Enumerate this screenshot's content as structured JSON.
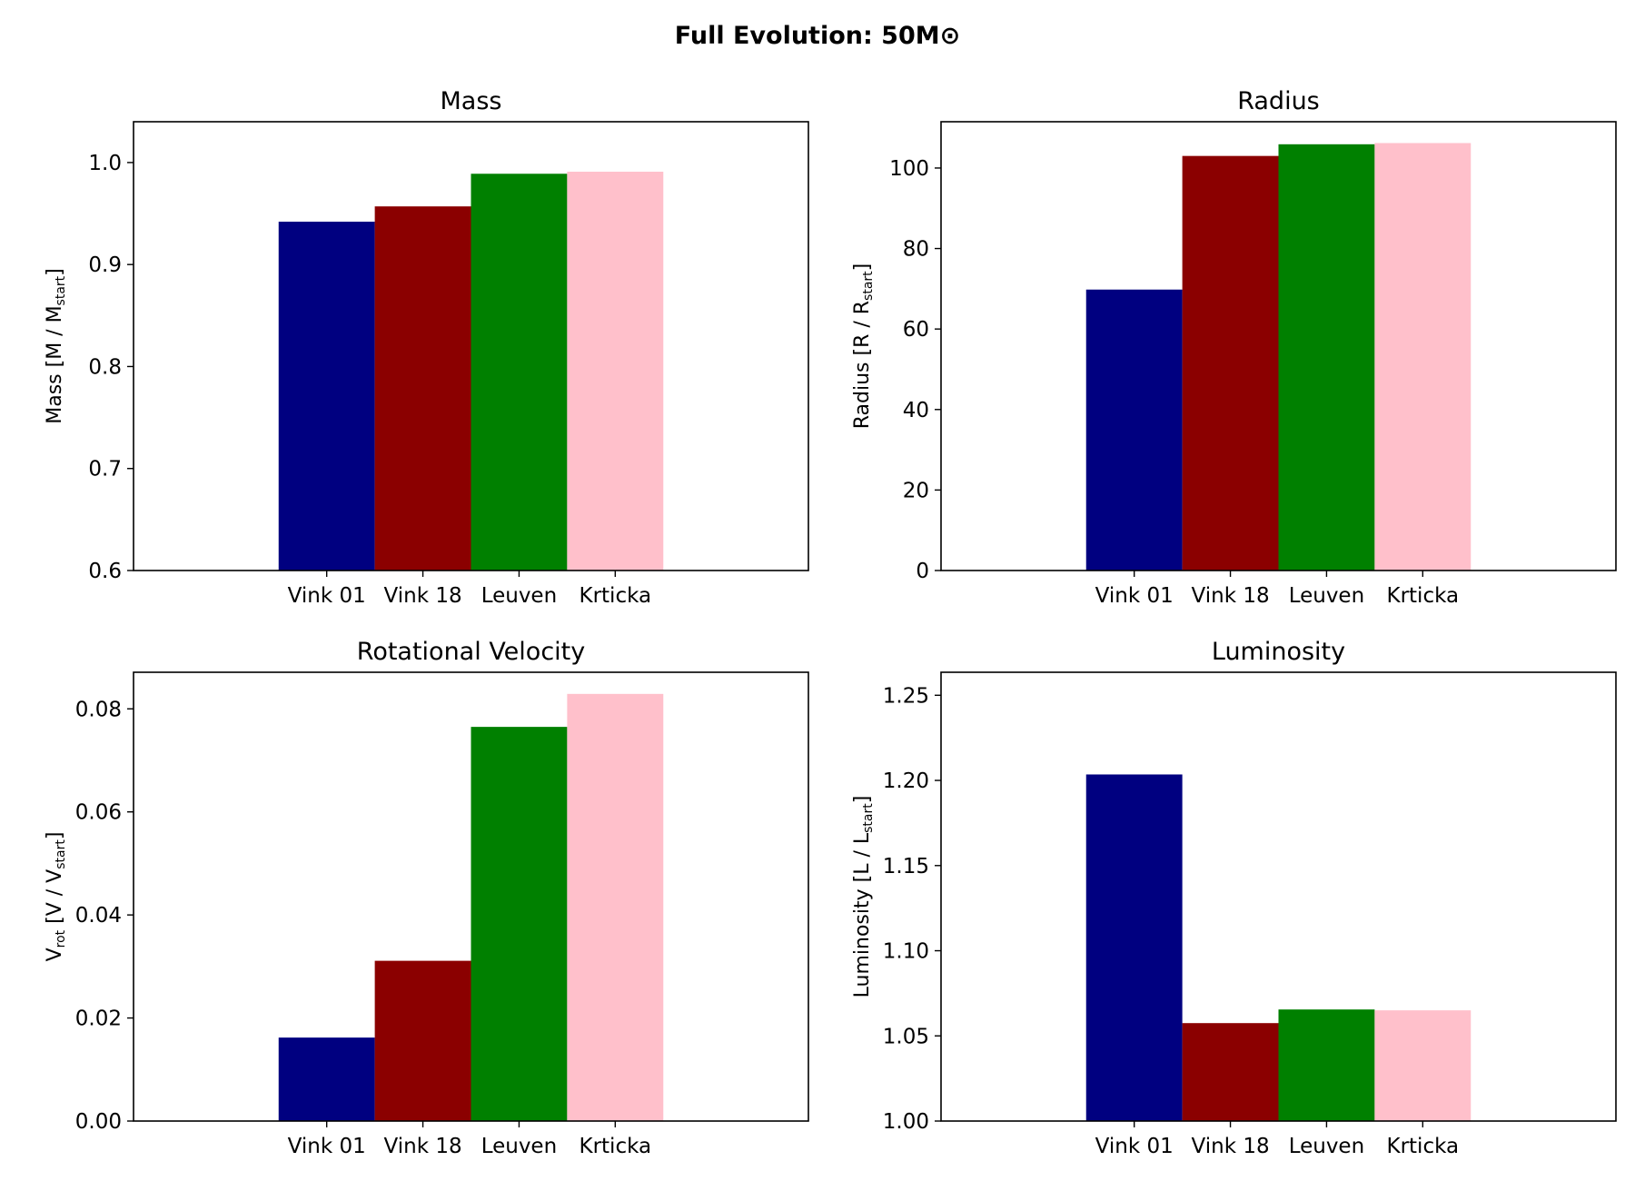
{
  "figure": {
    "title": "Full Evolution: 50M⊙"
  },
  "categories": [
    "Vink 01",
    "Vink 18",
    "Leuven",
    "Krticka"
  ],
  "colors": [
    "#000080",
    "#8b0000",
    "#008000",
    "#ffc0cb"
  ],
  "chart_data": [
    {
      "type": "bar",
      "title": "Mass",
      "ylabel": "Mass [M / M",
      "ylabel_sub": "start",
      "ylabel_suffix": "]",
      "categories": [
        "Vink 01",
        "Vink 18",
        "Leuven",
        "Krticka"
      ],
      "values": [
        0.942,
        0.957,
        0.989,
        0.991
      ],
      "ylim": [
        0.6,
        1.04
      ],
      "yticks": [
        0.6,
        0.7,
        0.8,
        0.9,
        1.0
      ],
      "ytick_labels": [
        "0.6",
        "0.7",
        "0.8",
        "0.9",
        "1.0"
      ],
      "grid": false,
      "legend": false
    },
    {
      "type": "bar",
      "title": "Radius",
      "ylabel": "Radius [R / R",
      "ylabel_sub": "start",
      "ylabel_suffix": "]",
      "categories": [
        "Vink 01",
        "Vink 18",
        "Leuven",
        "Krticka"
      ],
      "values": [
        69.8,
        103.0,
        105.9,
        106.2
      ],
      "ylim": [
        0,
        111.5
      ],
      "yticks": [
        0,
        20,
        40,
        60,
        80,
        100
      ],
      "ytick_labels": [
        "0",
        "20",
        "40",
        "60",
        "80",
        "100"
      ],
      "grid": false,
      "legend": false
    },
    {
      "type": "bar",
      "title": "Rotational Velocity",
      "ylabel": "V",
      "ylabel_sub": "rot",
      "ylabel_suffix": " [V / V",
      "ylabel_sub2": "start",
      "ylabel_suffix2": "]",
      "categories": [
        "Vink 01",
        "Vink 18",
        "Leuven",
        "Krticka"
      ],
      "values": [
        0.0162,
        0.0311,
        0.0765,
        0.0829
      ],
      "ylim": [
        0,
        0.0871
      ],
      "yticks": [
        0,
        0.02,
        0.04,
        0.06,
        0.08
      ],
      "ytick_labels": [
        "0.00",
        "0.02",
        "0.04",
        "0.06",
        "0.08"
      ],
      "grid": false,
      "legend": false
    },
    {
      "type": "bar",
      "title": "Luminosity",
      "ylabel": "Luminosity [L / L",
      "ylabel_sub": "start",
      "ylabel_suffix": "]",
      "categories": [
        "Vink 01",
        "Vink 18",
        "Leuven",
        "Krticka"
      ],
      "values": [
        1.2035,
        1.0575,
        1.0655,
        1.065
      ],
      "ylim": [
        1.0,
        1.2635
      ],
      "yticks": [
        1.0,
        1.05,
        1.1,
        1.15,
        1.2,
        1.25
      ],
      "ytick_labels": [
        "1.00",
        "1.05",
        "1.10",
        "1.15",
        "1.20",
        "1.25"
      ],
      "grid": false,
      "legend": false
    }
  ]
}
